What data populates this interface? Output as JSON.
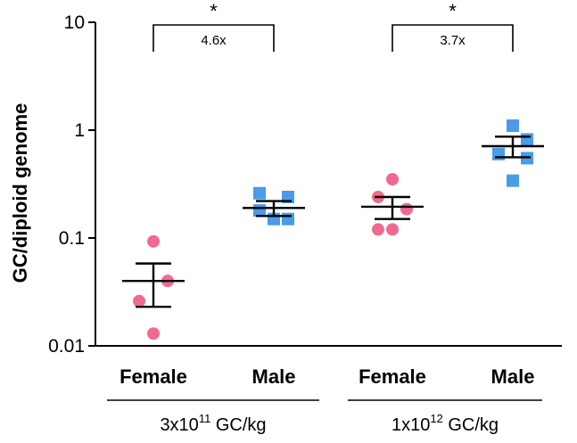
{
  "chart_data": {
    "type": "scatter",
    "title": "",
    "xlabel": "",
    "ylabel": "GC/diploid genome",
    "yscale": "log",
    "ylim": [
      0.01,
      10
    ],
    "yticks": [
      {
        "value": 0.01,
        "label": "0.01"
      },
      {
        "value": 0.1,
        "label": "0.1"
      },
      {
        "value": 1,
        "label": "1"
      },
      {
        "value": 10,
        "label": "10"
      }
    ],
    "colors": {
      "female": "#F06A8F",
      "male": "#4A9BE8"
    },
    "dose_groups": [
      {
        "base": "3x10",
        "exp": "11",
        "unit": " GC/kg"
      },
      {
        "base": "1x10",
        "exp": "12",
        "unit": " GC/kg"
      }
    ],
    "series": [
      {
        "name": "Female",
        "dose": 0,
        "marker": "circle",
        "values": [
          0.093,
          0.04,
          0.026,
          0.013
        ],
        "mean": 0.04,
        "sem_low": 0.023,
        "sem_high": 0.058
      },
      {
        "name": "Male",
        "dose": 0,
        "marker": "square",
        "values": [
          0.26,
          0.24,
          0.18,
          0.15,
          0.15
        ],
        "mean": 0.19,
        "sem_low": 0.16,
        "sem_high": 0.22
      },
      {
        "name": "Female",
        "dose": 1,
        "marker": "circle",
        "values": [
          0.35,
          0.24,
          0.185,
          0.12,
          0.12
        ],
        "mean": 0.195,
        "sem_low": 0.15,
        "sem_high": 0.24
      },
      {
        "name": "Male",
        "dose": 1,
        "marker": "square",
        "values": [
          1.1,
          0.82,
          0.6,
          0.55,
          0.34
        ],
        "mean": 0.71,
        "sem_low": 0.56,
        "sem_high": 0.87
      }
    ],
    "annotations": [
      {
        "from": 0,
        "to": 1,
        "fold": "4.6x",
        "sig": "*"
      },
      {
        "from": 2,
        "to": 3,
        "fold": "3.7x",
        "sig": "*"
      }
    ]
  }
}
